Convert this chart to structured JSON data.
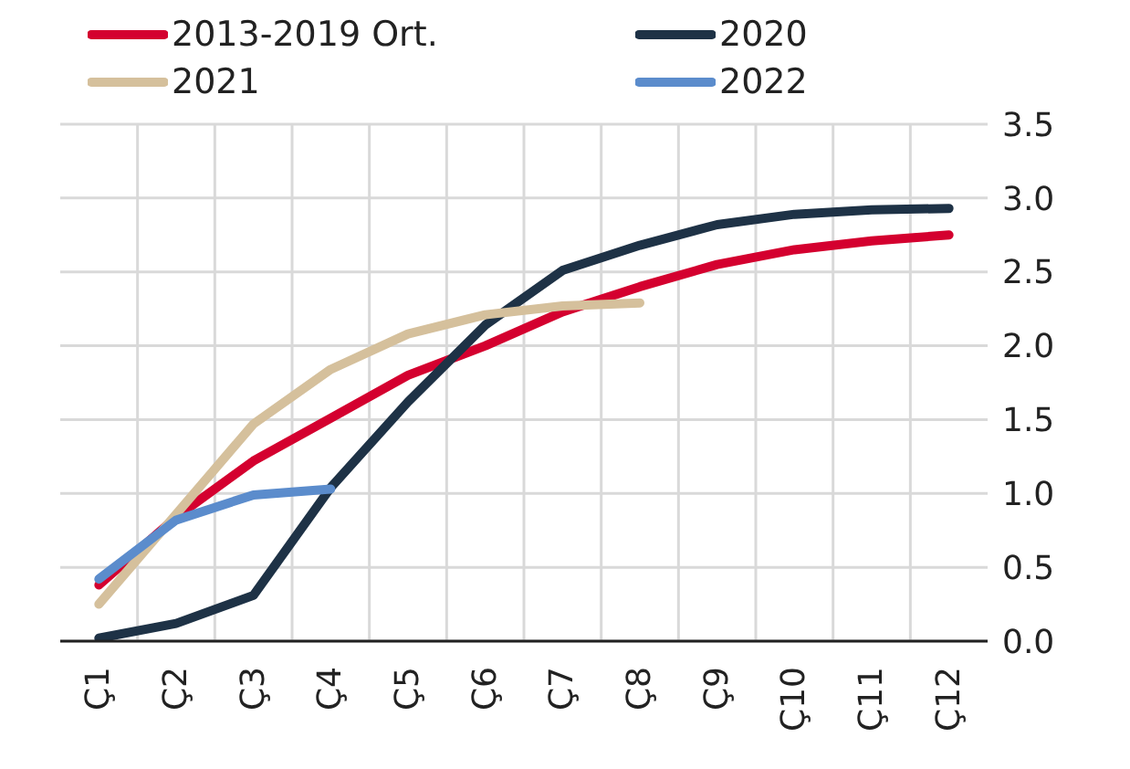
{
  "chart_data": {
    "type": "line",
    "categories": [
      "Ç1",
      "Ç2",
      "Ç3",
      "Ç4",
      "Ç5",
      "Ç6",
      "Ç7",
      "Ç8",
      "Ç9",
      "Ç10",
      "Ç11",
      "Ç12"
    ],
    "series": [
      {
        "name": "2013-2019 Ort.",
        "color": "#d4002f",
        "values": [
          0.38,
          0.84,
          1.22,
          1.51,
          1.8,
          2.0,
          2.23,
          2.4,
          2.55,
          2.65,
          2.71,
          2.75
        ]
      },
      {
        "name": "2020",
        "color": "#1e3246",
        "values": [
          0.02,
          0.12,
          0.31,
          1.04,
          1.62,
          2.14,
          2.51,
          2.68,
          2.82,
          2.89,
          2.92,
          2.93
        ]
      },
      {
        "name": "2021",
        "color": "#d5c09c",
        "values": [
          0.25,
          0.86,
          1.47,
          1.84,
          2.08,
          2.21,
          2.27,
          2.29,
          null,
          null,
          null,
          null
        ]
      },
      {
        "name": "2022",
        "color": "#5b8ccc",
        "values": [
          0.42,
          0.82,
          0.99,
          1.03,
          null,
          null,
          null,
          null,
          null,
          null,
          null,
          null
        ]
      }
    ],
    "ylim": [
      0,
      3.5
    ],
    "yticks": [
      {
        "value": 0,
        "label": "0.0"
      },
      0.5,
      {
        "value": 1,
        "label": "1.0"
      },
      1.5,
      {
        "value": 2,
        "label": "2.0"
      },
      2.5,
      {
        "value": 3,
        "label": "3.0"
      },
      3.5
    ],
    "grid": true,
    "legend": "top",
    "marker": "none",
    "line_style": "solid"
  }
}
